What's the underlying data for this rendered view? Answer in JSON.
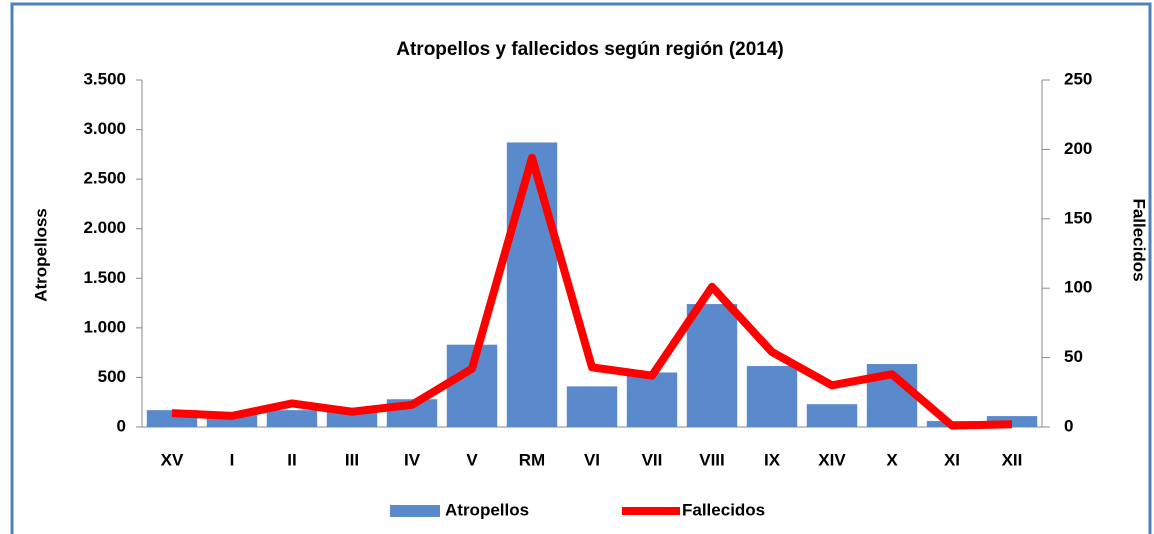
{
  "chart_data": {
    "type": "bar-line",
    "title": "Atropellos y fallecidos según región (2014)",
    "y_label": "Atropelloss",
    "y2_label": "Fallecidos",
    "categories": [
      "XV",
      "I",
      "II",
      "III",
      "IV",
      "V",
      "RM",
      "VI",
      "VII",
      "VIII",
      "IX",
      "XIV",
      "X",
      "XI",
      "XII"
    ],
    "series": [
      {
        "name": "Atropellos",
        "type": "bar",
        "color": "#5a8acb",
        "values": [
          170,
          150,
          170,
          150,
          280,
          830,
          2870,
          410,
          550,
          1240,
          615,
          230,
          635,
          60,
          110
        ]
      },
      {
        "name": "Fallecidos",
        "type": "line",
        "axis": "y2",
        "color": "#ff0000",
        "values": [
          10,
          8,
          17,
          11,
          16,
          42,
          194,
          43,
          37,
          101,
          54,
          30,
          38,
          1,
          2
        ]
      }
    ],
    "ylim": [
      0,
      3500
    ],
    "yticks": [
      0,
      500,
      {
        "value": 1000,
        "label": "1.000"
      },
      {
        "value": 1500,
        "label": "1.500"
      },
      {
        "value": 2000,
        "label": "2.000"
      },
      {
        "value": 2500,
        "label": "2.500"
      },
      {
        "value": 3000,
        "label": "3.000"
      },
      {
        "value": 3500,
        "label": "3.500"
      }
    ],
    "y2lim": [
      0,
      250
    ],
    "y2ticks": [
      0,
      50,
      100,
      150,
      200,
      250
    ],
    "legend": "bottom"
  }
}
